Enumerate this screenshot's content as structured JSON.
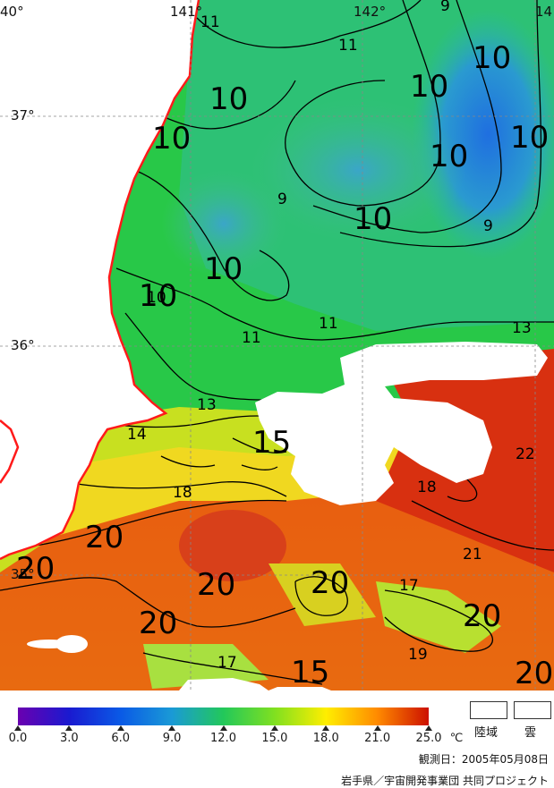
{
  "map": {
    "longitude_labels": [
      {
        "text": "40°"
      },
      {
        "text": "141°"
      },
      {
        "text": "142°"
      },
      {
        "text": "14"
      }
    ],
    "latitude_labels": [
      {
        "text": "37°"
      },
      {
        "text": "36°"
      },
      {
        "text": "35°"
      }
    ],
    "contour_labels_large": [
      "10",
      "10",
      "10",
      "10",
      "10",
      "10",
      "10",
      "10",
      "10",
      "15",
      "20",
      "20",
      "20",
      "20",
      "20",
      "20",
      "15",
      "20"
    ],
    "contour_labels_small": [
      "9",
      "11",
      "11",
      "9",
      "9",
      "11",
      "11",
      "13",
      "13",
      "14",
      "18",
      "18",
      "21",
      "22",
      "17",
      "19",
      "17",
      "10"
    ],
    "colors": {
      "land": "#ffffff",
      "coastline": "#ff1a1a",
      "cloud": "#ffffff",
      "grid": "#888888"
    }
  },
  "legend": {
    "tick_labels": [
      "0.0",
      "3.0",
      "6.0",
      "9.0",
      "12.0",
      "15.0",
      "18.0",
      "21.0",
      "25.0"
    ],
    "unit": "℃",
    "land_label": "陸域",
    "cloud_label": "雲",
    "observation_date": "観測日：2005年05月08日",
    "credit": "岩手県／宇宙開発事業団 共同プロジェクト",
    "gradient_colors": [
      "#6a00b0",
      "#1a1ad0",
      "#0a5ae6",
      "#1a9ad6",
      "#22c85a",
      "#80e020",
      "#ffee00",
      "#ff8a00",
      "#cc1000"
    ]
  }
}
